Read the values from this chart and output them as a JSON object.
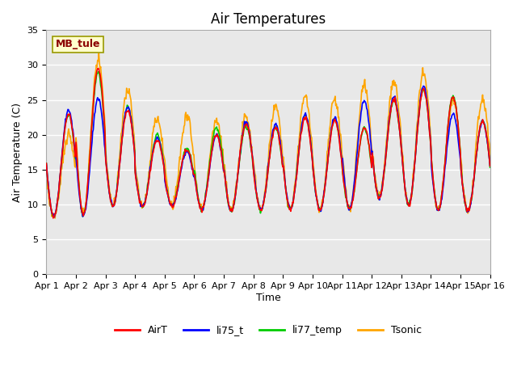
{
  "title": "Air Temperatures",
  "xlabel": "Time",
  "ylabel": "Air Temperature (C)",
  "annotation": "MB_tule",
  "annotation_color": "#8B0000",
  "annotation_bg": "#FFFFCC",
  "annotation_edge": "#999900",
  "ylim": [
    0,
    35
  ],
  "yticks": [
    0,
    5,
    10,
    15,
    20,
    25,
    30,
    35
  ],
  "legend_labels": [
    "AirT",
    "li75_t",
    "li77_temp",
    "Tsonic"
  ],
  "line_colors": [
    "#FF0000",
    "#0000FF",
    "#00CC00",
    "#FFA500"
  ],
  "xtick_labels": [
    "Apr 1",
    "Apr 2",
    "Apr 3",
    "Apr 4",
    "Apr 5",
    "Apr 6",
    "Apr 7",
    "Apr 8",
    "Apr 9",
    "Apr 10",
    "Apr 11",
    "Apr 12",
    "Apr 13",
    "Apr 14",
    "Apr 15",
    "Apr 16"
  ],
  "fig_bg": "#FFFFFF",
  "plot_bg": "#E8E8E8",
  "grid_color": "#FFFFFF",
  "title_fontsize": 12,
  "axis_fontsize": 9,
  "tick_fontsize": 8,
  "legend_fontsize": 9,
  "line_width": 1.2
}
